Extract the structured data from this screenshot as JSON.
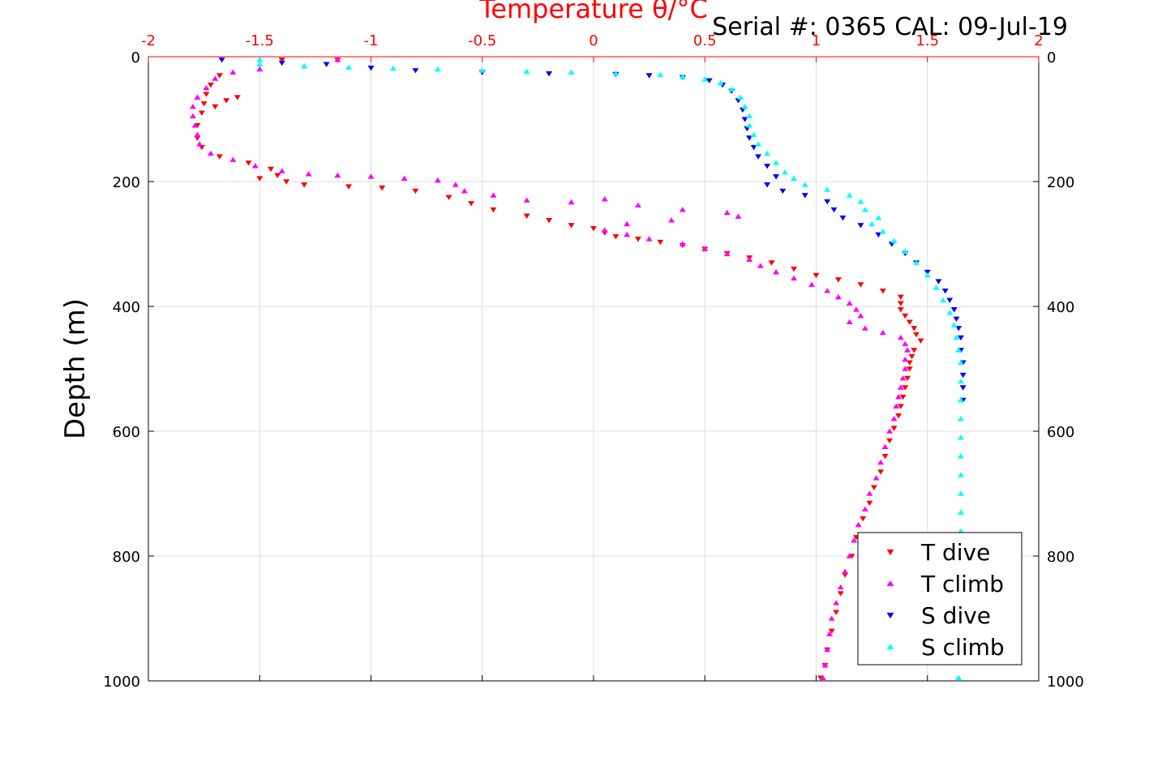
{
  "header": {
    "serial_label": "Serial #: 0365  CAL: 09-Jul-19"
  },
  "chart_data": {
    "type": "scatter",
    "title": "",
    "top_xlabel": "Temperature θ/°C",
    "ylabel": "Depth (m)",
    "xlim": [
      -2,
      2
    ],
    "ylim": [
      0,
      1000
    ],
    "y_reversed": true,
    "grid": true,
    "x_ticks": [
      -2,
      -1.5,
      -1,
      -0.5,
      0,
      0.5,
      1,
      1.5,
      2
    ],
    "x_tick_labels": [
      "-2",
      "-1.5",
      "-1",
      "-0.5",
      "0",
      "0.5",
      "1",
      "1.5",
      "2"
    ],
    "y_ticks": [
      0,
      200,
      400,
      600,
      800,
      1000
    ],
    "y_tick_labels": [
      "0",
      "200",
      "400",
      "600",
      "800",
      "1000"
    ],
    "axis_color": "#ff0000",
    "legend_position": "bottom-right",
    "series": [
      {
        "name": "T dive",
        "color": "#ff0000",
        "marker": "triangle-down",
        "points": [
          [
            -1.68,
            30
          ],
          [
            -1.72,
            45
          ],
          [
            -1.74,
            60
          ],
          [
            -1.75,
            75
          ],
          [
            -1.76,
            90
          ],
          [
            -1.78,
            110
          ],
          [
            -1.78,
            130
          ],
          [
            -1.76,
            145
          ],
          [
            -1.68,
            160
          ],
          [
            -1.55,
            170
          ],
          [
            -1.45,
            180
          ],
          [
            -1.42,
            190
          ],
          [
            -1.38,
            200
          ],
          [
            -1.6,
            65
          ],
          [
            -1.65,
            70
          ],
          [
            -1.7,
            80
          ],
          [
            -1.5,
            195
          ],
          [
            -1.3,
            205
          ],
          [
            -1.1,
            208
          ],
          [
            -0.95,
            210
          ],
          [
            -0.8,
            215
          ],
          [
            -0.65,
            225
          ],
          [
            -0.55,
            235
          ],
          [
            -0.45,
            245
          ],
          [
            -0.3,
            255
          ],
          [
            -0.2,
            262
          ],
          [
            -0.1,
            270
          ],
          [
            0.0,
            275
          ],
          [
            0.05,
            282
          ],
          [
            0.1,
            288
          ],
          [
            0.2,
            292
          ],
          [
            0.3,
            297
          ],
          [
            0.4,
            302
          ],
          [
            0.5,
            308
          ],
          [
            0.6,
            315
          ],
          [
            0.7,
            322
          ],
          [
            0.8,
            330
          ],
          [
            0.9,
            340
          ],
          [
            1.0,
            350
          ],
          [
            1.1,
            357
          ],
          [
            1.2,
            365
          ],
          [
            1.3,
            375
          ],
          [
            1.38,
            385
          ],
          [
            1.38,
            395
          ],
          [
            1.38,
            405
          ],
          [
            1.4,
            415
          ],
          [
            1.42,
            425
          ],
          [
            1.44,
            435
          ],
          [
            1.45,
            445
          ],
          [
            1.47,
            455
          ],
          [
            1.44,
            470
          ],
          [
            1.43,
            480
          ],
          [
            1.42,
            490
          ],
          [
            1.42,
            500
          ],
          [
            1.41,
            515
          ],
          [
            1.4,
            530
          ],
          [
            1.39,
            545
          ],
          [
            1.38,
            560
          ],
          [
            1.37,
            575
          ],
          [
            1.35,
            595
          ],
          [
            1.33,
            615
          ],
          [
            1.31,
            640
          ],
          [
            1.29,
            665
          ],
          [
            1.26,
            690
          ],
          [
            1.24,
            715
          ],
          [
            1.21,
            740
          ],
          [
            1.18,
            770
          ],
          [
            1.16,
            800
          ],
          [
            1.13,
            830
          ],
          [
            1.11,
            860
          ],
          [
            1.09,
            890
          ],
          [
            1.07,
            920
          ],
          [
            1.05,
            950
          ],
          [
            1.04,
            975
          ],
          [
            1.02,
            995
          ],
          [
            -1.4,
            5
          ],
          [
            -1.15,
            5
          ]
        ]
      },
      {
        "name": "T climb",
        "color": "#ff00ff",
        "marker": "triangle-up",
        "points": [
          [
            -1.15,
            5
          ],
          [
            -1.3,
            15
          ],
          [
            -1.5,
            20
          ],
          [
            -1.62,
            25
          ],
          [
            -1.7,
            35
          ],
          [
            -1.74,
            50
          ],
          [
            -1.78,
            65
          ],
          [
            -1.8,
            80
          ],
          [
            -1.8,
            95
          ],
          [
            -1.79,
            110
          ],
          [
            -1.78,
            125
          ],
          [
            -1.77,
            140
          ],
          [
            -1.72,
            155
          ],
          [
            -1.62,
            165
          ],
          [
            -1.52,
            175
          ],
          [
            -1.4,
            183
          ],
          [
            -1.28,
            188
          ],
          [
            -1.15,
            190
          ],
          [
            -1.0,
            192
          ],
          [
            -0.85,
            195
          ],
          [
            -0.7,
            198
          ],
          [
            -0.62,
            205
          ],
          [
            -0.58,
            215
          ],
          [
            -0.45,
            222
          ],
          [
            -0.3,
            230
          ],
          [
            -0.1,
            233
          ],
          [
            0.05,
            228
          ],
          [
            0.2,
            238
          ],
          [
            0.4,
            245
          ],
          [
            0.6,
            250
          ],
          [
            0.65,
            256
          ],
          [
            0.35,
            262
          ],
          [
            0.15,
            268
          ],
          [
            0.05,
            278
          ],
          [
            0.15,
            285
          ],
          [
            0.25,
            292
          ],
          [
            0.4,
            300
          ],
          [
            0.5,
            308
          ],
          [
            0.6,
            316
          ],
          [
            0.7,
            325
          ],
          [
            0.75,
            335
          ],
          [
            0.82,
            345
          ],
          [
            0.9,
            355
          ],
          [
            0.98,
            365
          ],
          [
            1.05,
            375
          ],
          [
            1.1,
            385
          ],
          [
            1.15,
            395
          ],
          [
            1.18,
            405
          ],
          [
            1.2,
            415
          ],
          [
            1.15,
            425
          ],
          [
            1.22,
            435
          ],
          [
            1.3,
            442
          ],
          [
            1.38,
            450
          ],
          [
            1.4,
            460
          ],
          [
            1.41,
            470
          ],
          [
            1.4,
            485
          ],
          [
            1.4,
            500
          ],
          [
            1.39,
            515
          ],
          [
            1.38,
            530
          ],
          [
            1.37,
            545
          ],
          [
            1.36,
            560
          ],
          [
            1.35,
            580
          ],
          [
            1.33,
            600
          ],
          [
            1.31,
            625
          ],
          [
            1.29,
            650
          ],
          [
            1.27,
            675
          ],
          [
            1.24,
            700
          ],
          [
            1.22,
            725
          ],
          [
            1.19,
            750
          ],
          [
            1.17,
            775
          ],
          [
            1.15,
            800
          ],
          [
            1.13,
            825
          ],
          [
            1.11,
            850
          ],
          [
            1.09,
            875
          ],
          [
            1.07,
            900
          ],
          [
            1.06,
            925
          ],
          [
            1.05,
            950
          ],
          [
            1.04,
            975
          ],
          [
            1.03,
            995
          ]
        ]
      },
      {
        "name": "S dive",
        "color": "#0000ff",
        "marker": "triangle-down",
        "points": [
          [
            -1.67,
            5
          ],
          [
            -1.4,
            10
          ],
          [
            -1.2,
            12
          ],
          [
            -1.0,
            18
          ],
          [
            -0.8,
            22
          ],
          [
            -0.5,
            25
          ],
          [
            -0.2,
            27
          ],
          [
            0.1,
            28
          ],
          [
            0.25,
            30
          ],
          [
            0.4,
            33
          ],
          [
            0.52,
            38
          ],
          [
            0.58,
            45
          ],
          [
            0.62,
            55
          ],
          [
            0.65,
            70
          ],
          [
            0.67,
            85
          ],
          [
            0.68,
            100
          ],
          [
            0.69,
            115
          ],
          [
            0.7,
            130
          ],
          [
            0.72,
            145
          ],
          [
            0.74,
            160
          ],
          [
            0.78,
            175
          ],
          [
            0.82,
            192
          ],
          [
            0.78,
            205
          ],
          [
            0.85,
            215
          ],
          [
            0.95,
            222
          ],
          [
            1.05,
            232
          ],
          [
            1.08,
            245
          ],
          [
            1.12,
            258
          ],
          [
            1.2,
            270
          ],
          [
            1.28,
            285
          ],
          [
            1.34,
            300
          ],
          [
            1.4,
            315
          ],
          [
            1.45,
            330
          ],
          [
            1.5,
            345
          ],
          [
            1.55,
            360
          ],
          [
            1.58,
            375
          ],
          [
            1.6,
            390
          ],
          [
            1.62,
            405
          ],
          [
            1.63,
            420
          ],
          [
            1.64,
            435
          ],
          [
            1.65,
            450
          ],
          [
            1.65,
            470
          ],
          [
            1.66,
            490
          ],
          [
            1.66,
            510
          ],
          [
            1.66,
            530
          ],
          [
            1.66,
            550
          ]
        ]
      },
      {
        "name": "S climb",
        "color": "#00ffff",
        "marker": "triangle-up",
        "points": [
          [
            -1.5,
            5
          ],
          [
            -1.5,
            12
          ],
          [
            -1.3,
            15
          ],
          [
            -1.1,
            17
          ],
          [
            -0.9,
            19
          ],
          [
            -0.7,
            20
          ],
          [
            -0.5,
            22
          ],
          [
            -0.3,
            24
          ],
          [
            -0.1,
            25
          ],
          [
            0.1,
            27
          ],
          [
            0.3,
            29
          ],
          [
            0.4,
            32
          ],
          [
            0.5,
            36
          ],
          [
            0.57,
            42
          ],
          [
            0.62,
            52
          ],
          [
            0.66,
            65
          ],
          [
            0.68,
            80
          ],
          [
            0.7,
            95
          ],
          [
            0.7,
            110
          ],
          [
            0.72,
            125
          ],
          [
            0.74,
            140
          ],
          [
            0.78,
            155
          ],
          [
            0.82,
            170
          ],
          [
            0.86,
            185
          ],
          [
            0.9,
            195
          ],
          [
            0.95,
            205
          ],
          [
            1.05,
            213
          ],
          [
            1.15,
            222
          ],
          [
            1.2,
            232
          ],
          [
            1.22,
            245
          ],
          [
            1.28,
            258
          ],
          [
            1.25,
            268
          ],
          [
            1.3,
            280
          ],
          [
            1.35,
            295
          ],
          [
            1.4,
            312
          ],
          [
            1.45,
            330
          ],
          [
            1.5,
            350
          ],
          [
            1.54,
            370
          ],
          [
            1.57,
            390
          ],
          [
            1.6,
            410
          ],
          [
            1.62,
            430
          ],
          [
            1.63,
            450
          ],
          [
            1.64,
            470
          ],
          [
            1.65,
            490
          ],
          [
            1.65,
            520
          ],
          [
            1.65,
            550
          ],
          [
            1.65,
            580
          ],
          [
            1.65,
            610
          ],
          [
            1.65,
            640
          ],
          [
            1.65,
            670
          ],
          [
            1.65,
            700
          ],
          [
            1.65,
            730
          ],
          [
            1.65,
            760
          ],
          [
            1.64,
            790
          ],
          [
            1.64,
            820
          ],
          [
            1.64,
            850
          ],
          [
            1.64,
            880
          ],
          [
            1.64,
            910
          ],
          [
            1.64,
            940
          ],
          [
            1.64,
            970
          ],
          [
            1.64,
            995
          ]
        ]
      }
    ]
  }
}
